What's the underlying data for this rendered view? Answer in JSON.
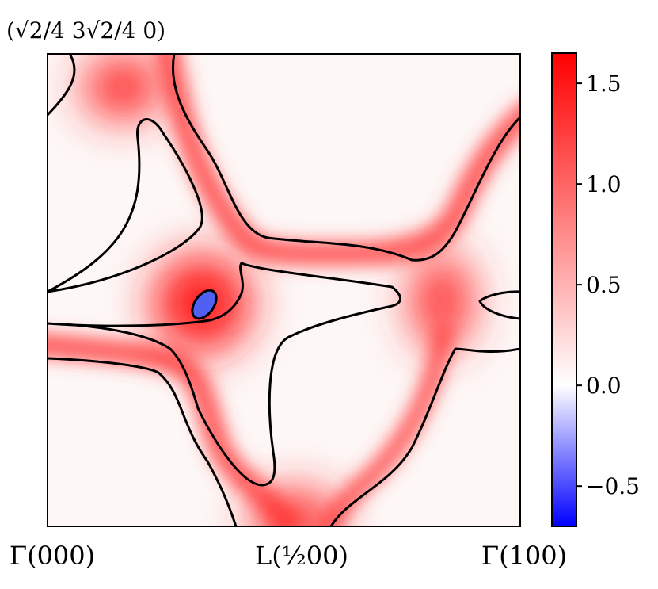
{
  "chart_data": {
    "type": "heatmap",
    "title": "",
    "xlabel": "",
    "ylabel": "",
    "x_ticks": [
      {
        "value": 0,
        "label": "Γ(000)"
      },
      {
        "value": 0.5,
        "label": "L(½00)"
      },
      {
        "value": 1,
        "label": "Γ(100)"
      }
    ],
    "y_ticks": [
      {
        "value": 1,
        "label": "(√2/4 3√2/4 0)"
      }
    ],
    "colorbar": {
      "colormap": "bwr",
      "range": [
        -0.7,
        1.65
      ],
      "ticks": [
        -0.5,
        0.0,
        0.5,
        1.0,
        1.5
      ],
      "tick_labels": [
        "−0.5",
        "0.0",
        "0.5",
        "1.0",
        "1.5"
      ],
      "min_color": "#0000ff",
      "mid_color": "#ffffff",
      "max_color": "#ff0000"
    },
    "hotspots": [
      {
        "name": "central lobe",
        "x": 0.33,
        "y": 0.53,
        "value": 1.5
      },
      {
        "name": "top-left lobe",
        "x": 0.16,
        "y": 0.91,
        "value": 1.3
      },
      {
        "name": "right lobe",
        "x": 0.83,
        "y": 0.48,
        "value": 1.2
      },
      {
        "name": "bottom lobe",
        "x": 0.52,
        "y": 0.03,
        "value": 1.3
      },
      {
        "name": "blue pocket",
        "x": 0.335,
        "y": 0.535,
        "value": -0.7
      }
    ],
    "contour_level": 0.0,
    "grid": false
  }
}
